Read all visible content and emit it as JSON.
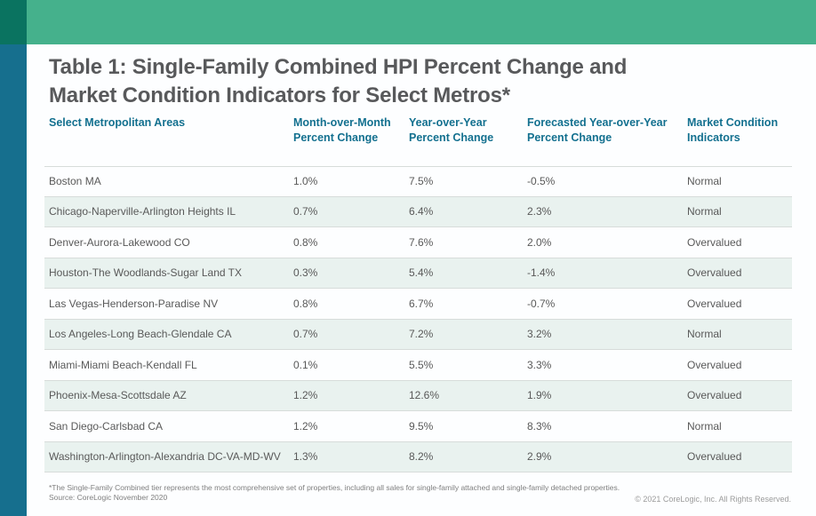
{
  "page": {
    "title": "Table 1: Single-Family Combined HPI Percent Change and Market Condition Indicators for Select Metros*"
  },
  "colors": {
    "corner_block": "#0a7360",
    "top_bar": "#45b18c",
    "side_bar": "#166f8e",
    "header_text": "#13708f",
    "row_stripe": "#e9f2ef",
    "body_text": "#595959",
    "title_text": "#58595b"
  },
  "table": {
    "columns": [
      "Select Metropolitan Areas",
      "Month-over-Month Percent Change",
      "Year-over-Year Percent Change",
      "Forecasted Year-over-Year Percent Change",
      "Market Condition Indicators"
    ],
    "rows": [
      {
        "metro": "Boston MA",
        "mom": "1.0%",
        "yoy": "7.5%",
        "forecast": "-0.5%",
        "condition": "Normal"
      },
      {
        "metro": "Chicago-Naperville-Arlington Heights IL",
        "mom": "0.7%",
        "yoy": "6.4%",
        "forecast": "2.3%",
        "condition": "Normal"
      },
      {
        "metro": "Denver-Aurora-Lakewood CO",
        "mom": "0.8%",
        "yoy": "7.6%",
        "forecast": "2.0%",
        "condition": "Overvalued"
      },
      {
        "metro": "Houston-The Woodlands-Sugar Land TX",
        "mom": "0.3%",
        "yoy": "5.4%",
        "forecast": "-1.4%",
        "condition": "Overvalued"
      },
      {
        "metro": "Las Vegas-Henderson-Paradise NV",
        "mom": "0.8%",
        "yoy": "6.7%",
        "forecast": "-0.7%",
        "condition": "Overvalued"
      },
      {
        "metro": "Los Angeles-Long Beach-Glendale CA",
        "mom": "0.7%",
        "yoy": "7.2%",
        "forecast": "3.2%",
        "condition": "Normal"
      },
      {
        "metro": "Miami-Miami Beach-Kendall FL",
        "mom": "0.1%",
        "yoy": "5.5%",
        "forecast": "3.3%",
        "condition": "Overvalued"
      },
      {
        "metro": "Phoenix-Mesa-Scottsdale AZ",
        "mom": "1.2%",
        "yoy": "12.6%",
        "forecast": "1.9%",
        "condition": "Overvalued"
      },
      {
        "metro": "San Diego-Carlsbad CA",
        "mom": "1.2%",
        "yoy": "9.5%",
        "forecast": "8.3%",
        "condition": "Normal"
      },
      {
        "metro": "Washington-Arlington-Alexandria DC-VA-MD-WV",
        "mom": "1.3%",
        "yoy": "8.2%",
        "forecast": "2.9%",
        "condition": "Overvalued"
      }
    ]
  },
  "footer": {
    "footnote": "*The Single-Family Combined tier represents the most comprehensive set of properties, including all sales for single-family attached and single-family detached properties.",
    "source": "Source: CoreLogic November 2020",
    "copyright": "© 2021 CoreLogic, Inc. All Rights Reserved."
  }
}
